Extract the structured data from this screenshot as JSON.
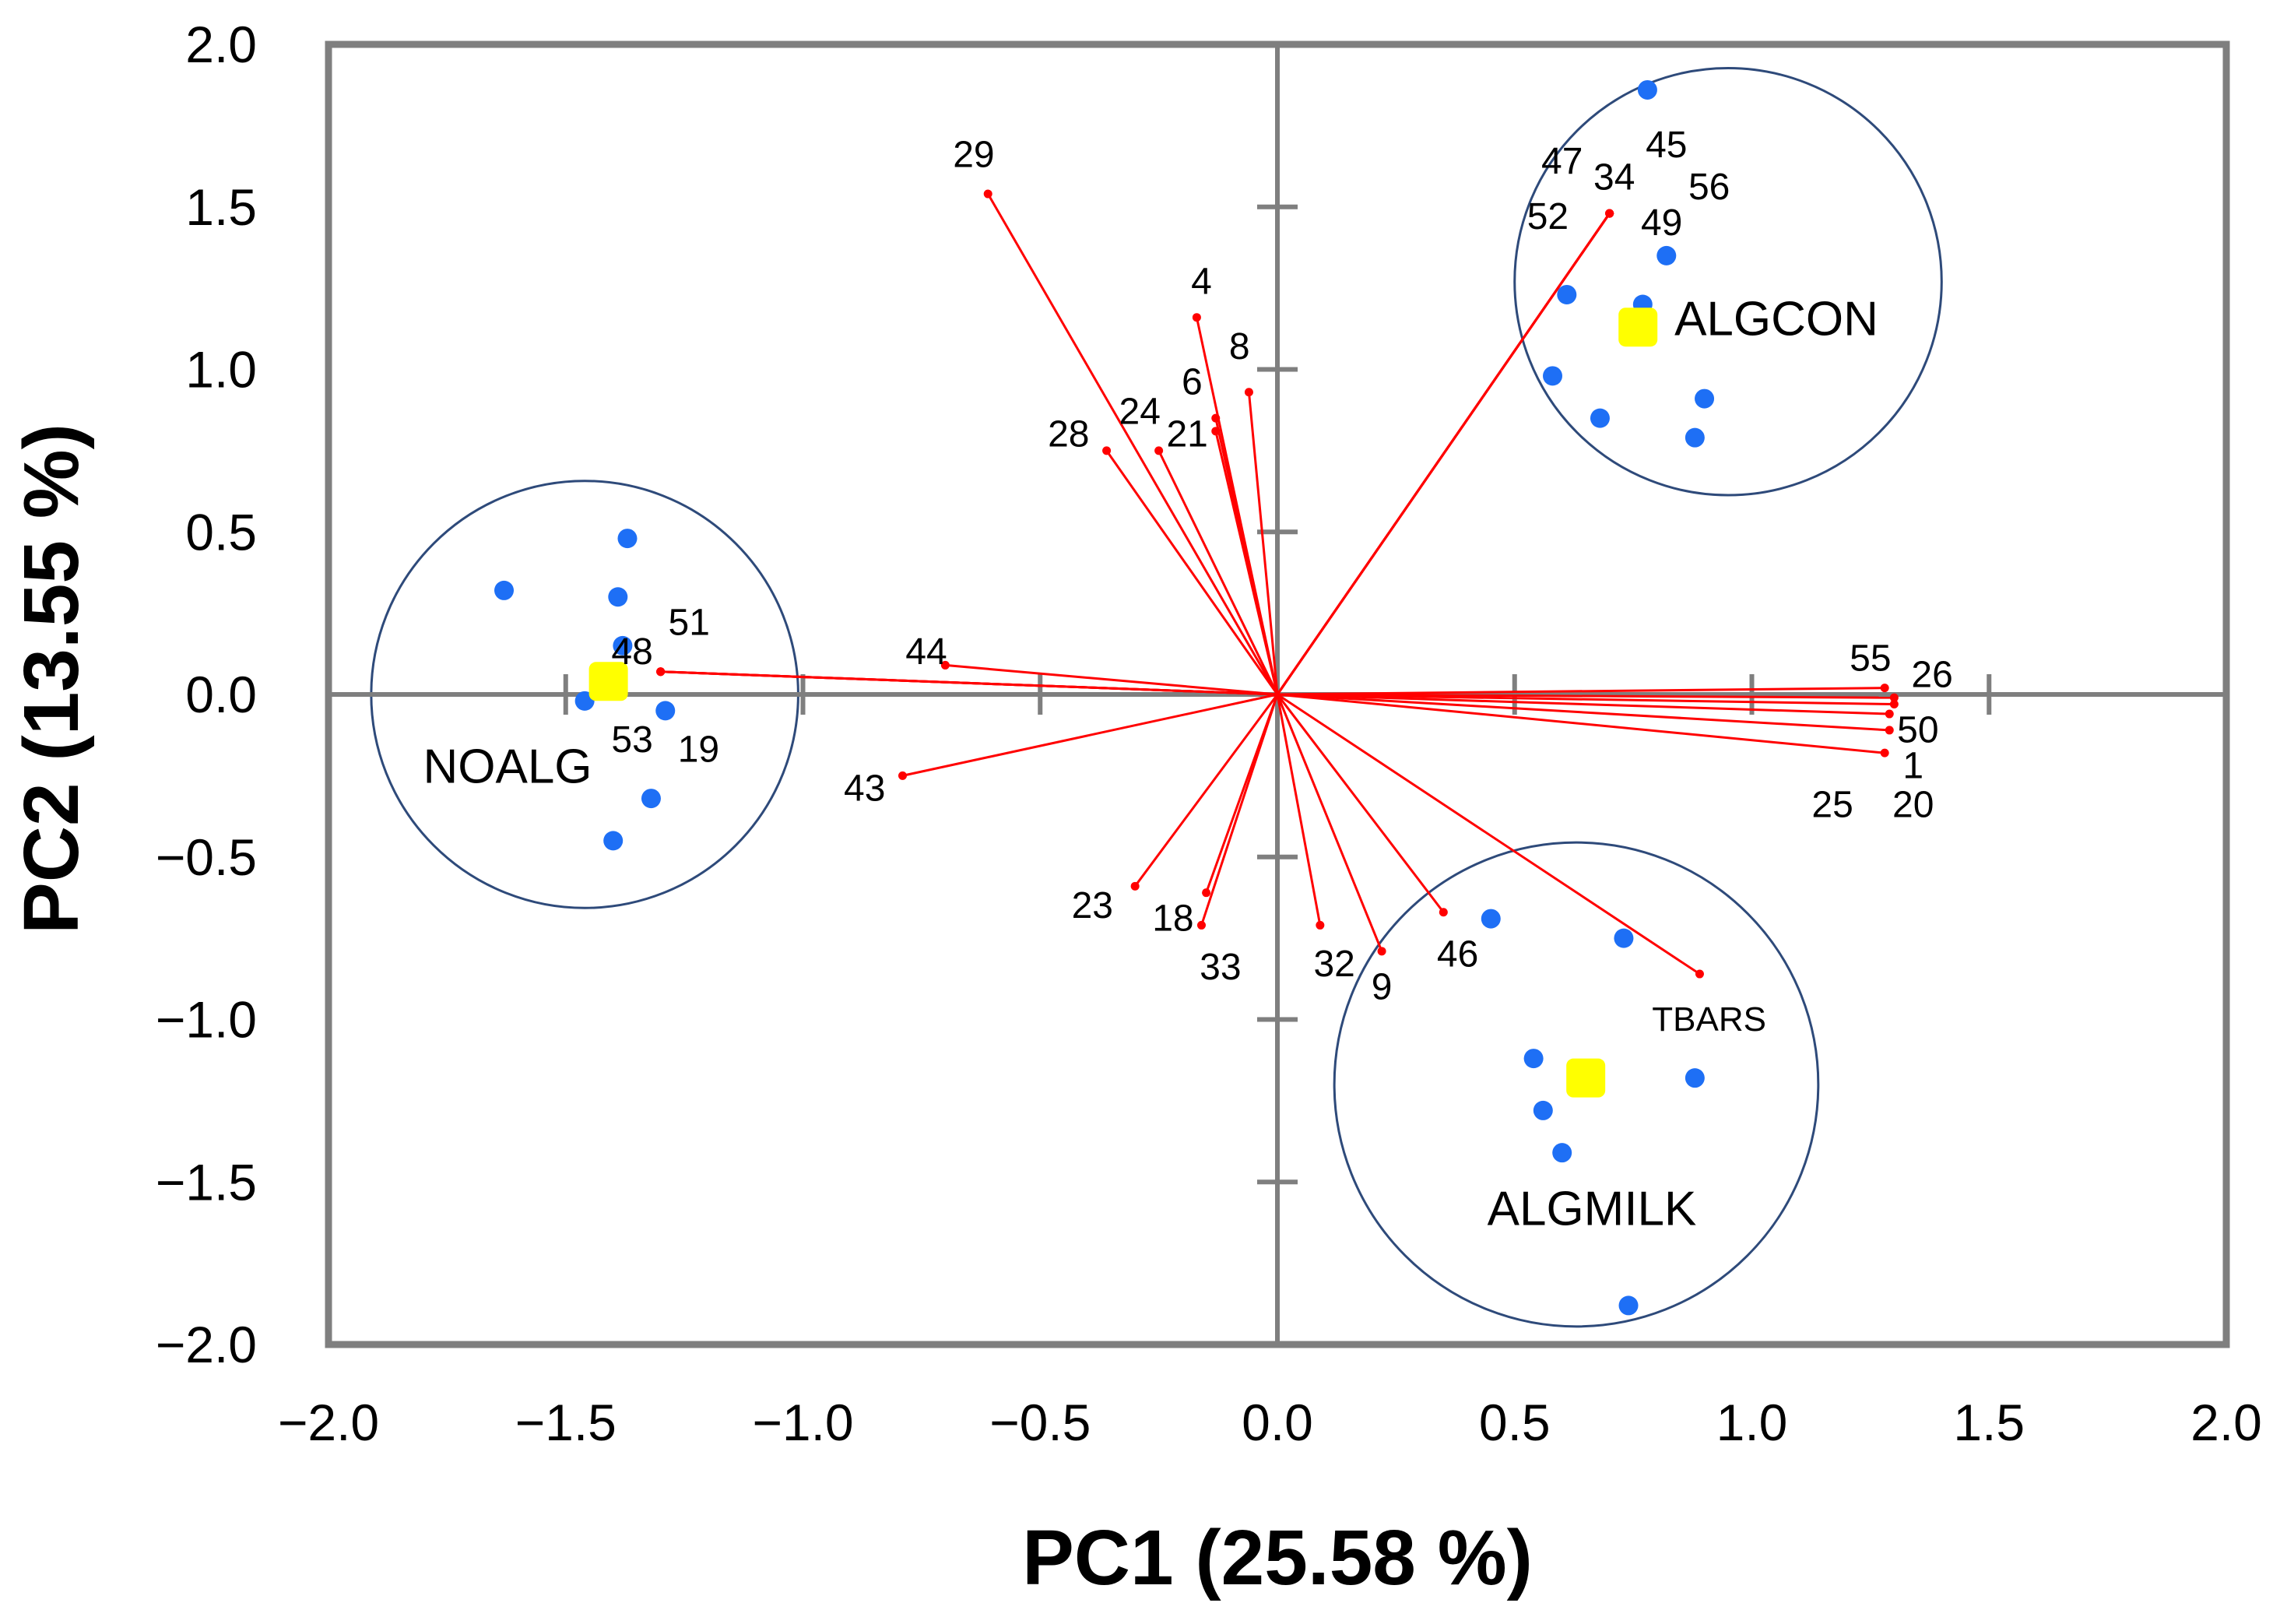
{
  "chart_data": {
    "type": "scatter",
    "subtype": "pca-biplot",
    "xlabel": "PC1 (25.58 %)",
    "ylabel": "PC2 (13.55 %)",
    "xlim": [
      -2.0,
      2.0
    ],
    "ylim": [
      -2.0,
      2.0
    ],
    "x_ticks": [
      -2.0,
      -1.5,
      -1.0,
      -0.5,
      0.0,
      0.5,
      1.0,
      1.5,
      2.0
    ],
    "y_ticks": [
      -2.0,
      -1.5,
      -1.0,
      -0.5,
      0.0,
      0.5,
      1.0,
      1.5,
      2.0
    ],
    "x_tick_labels": [
      "−2.0",
      "−1.5",
      "−1.0",
      "−0.5",
      "0.0",
      "0.5",
      "1.0",
      "1.5",
      "2.0"
    ],
    "y_tick_labels": [
      "−2.0",
      "−1.5",
      "−1.0",
      "−0.5",
      "0.0",
      "0.5",
      "1.0",
      "1.5",
      "2.0"
    ],
    "colors": {
      "loading": "#ff0000",
      "score": "#1e6ff5",
      "centroid": "#ffff00",
      "circle": "#2e4a7a",
      "frame": "#7f7f7f"
    },
    "groups": [
      {
        "name": "NOALG",
        "centroid": [
          -1.41,
          0.04
        ],
        "circle_center": [
          -1.46,
          0.0
        ],
        "circle_radius": 0.45,
        "scores": [
          [
            -1.63,
            0.32
          ],
          [
            -1.37,
            0.48
          ],
          [
            -1.39,
            0.3
          ],
          [
            -1.38,
            0.15
          ],
          [
            -1.46,
            -0.02
          ],
          [
            -1.29,
            -0.05
          ],
          [
            -1.32,
            -0.32
          ],
          [
            -1.4,
            -0.45
          ]
        ]
      },
      {
        "name": "ALGCON",
        "centroid": [
          0.76,
          1.13
        ],
        "circle_center": [
          0.95,
          1.27
        ],
        "circle_radius": 0.45,
        "scores": [
          [
            0.78,
            1.86
          ],
          [
            0.82,
            1.35
          ],
          [
            0.61,
            1.23
          ],
          [
            0.77,
            1.2
          ],
          [
            0.58,
            0.98
          ],
          [
            0.9,
            0.91
          ],
          [
            0.68,
            0.85
          ],
          [
            0.88,
            0.79
          ]
        ]
      },
      {
        "name": "ALGMILK",
        "centroid": [
          0.65,
          -1.18
        ],
        "circle_center": [
          0.63,
          -1.2
        ],
        "circle_radius": 0.51,
        "scores": [
          [
            0.45,
            -0.69
          ],
          [
            0.73,
            -0.75
          ],
          [
            0.54,
            -1.12
          ],
          [
            0.88,
            -1.18
          ],
          [
            0.56,
            -1.28
          ],
          [
            0.6,
            -1.41
          ],
          [
            0.74,
            -1.88
          ]
        ]
      }
    ],
    "loadings": [
      {
        "label": "29",
        "x": -0.61,
        "y": 1.54,
        "lx": -0.64,
        "ly": 1.66,
        "size": "normal"
      },
      {
        "label": "4",
        "x": -0.17,
        "y": 1.16,
        "lx": -0.16,
        "ly": 1.27,
        "size": "normal"
      },
      {
        "label": "8",
        "x": -0.06,
        "y": 0.93,
        "lx": -0.08,
        "ly": 1.07,
        "size": "normal"
      },
      {
        "label": "6",
        "x": -0.13,
        "y": 0.85,
        "lx": -0.18,
        "ly": 0.96,
        "size": "normal"
      },
      {
        "label": "24",
        "x": -0.25,
        "y": 0.75,
        "lx": -0.29,
        "ly": 0.87,
        "size": "normal"
      },
      {
        "label": "21",
        "x": -0.13,
        "y": 0.81,
        "lx": -0.19,
        "ly": 0.8,
        "size": "normal"
      },
      {
        "label": "28",
        "x": -0.36,
        "y": 0.75,
        "lx": -0.44,
        "ly": 0.8,
        "size": "normal"
      },
      {
        "label": "47",
        "x": 0.7,
        "y": 1.48,
        "lx": 0.6,
        "ly": 1.64,
        "size": "normal"
      },
      {
        "label": "34",
        "x": 0.7,
        "y": 1.48,
        "lx": 0.71,
        "ly": 1.59,
        "size": "normal"
      },
      {
        "label": "45",
        "x": 0.7,
        "y": 1.48,
        "lx": 0.82,
        "ly": 1.69,
        "size": "normal"
      },
      {
        "label": "56",
        "x": 0.7,
        "y": 1.48,
        "lx": 0.91,
        "ly": 1.56,
        "size": "normal"
      },
      {
        "label": "52",
        "x": 0.7,
        "y": 1.48,
        "lx": 0.57,
        "ly": 1.47,
        "size": "normal"
      },
      {
        "label": "49",
        "x": 0.7,
        "y": 1.48,
        "lx": 0.81,
        "ly": 1.45,
        "size": "normal"
      },
      {
        "label": "48",
        "x": -1.3,
        "y": 0.07,
        "lx": -1.36,
        "ly": 0.13,
        "size": "normal"
      },
      {
        "label": "51",
        "x": -1.3,
        "y": 0.07,
        "lx": -1.24,
        "ly": 0.22,
        "size": "normal"
      },
      {
        "label": "53",
        "x": -1.3,
        "y": 0.07,
        "lx": -1.36,
        "ly": -0.14,
        "size": "normal"
      },
      {
        "label": "19",
        "x": -1.3,
        "y": 0.07,
        "lx": -1.22,
        "ly": -0.17,
        "size": "normal"
      },
      {
        "label": "44",
        "x": -0.7,
        "y": 0.09,
        "lx": -0.74,
        "ly": 0.13,
        "size": "normal"
      },
      {
        "label": "43",
        "x": -0.79,
        "y": -0.25,
        "lx": -0.87,
        "ly": -0.29,
        "size": "normal"
      },
      {
        "label": "55",
        "x": 1.28,
        "y": 0.02,
        "lx": 1.25,
        "ly": 0.11,
        "size": "normal"
      },
      {
        "label": "26",
        "x": 1.3,
        "y": -0.01,
        "lx": 1.38,
        "ly": 0.06,
        "size": "normal"
      },
      {
        "label": "50",
        "x": 1.3,
        "y": -0.03,
        "lx": 1.35,
        "ly": -0.11,
        "size": "normal"
      },
      {
        "label": "1",
        "x": 1.29,
        "y": -0.11,
        "lx": 1.34,
        "ly": -0.22,
        "size": "normal"
      },
      {
        "label": "25",
        "x": 1.28,
        "y": -0.18,
        "lx": 1.17,
        "ly": -0.34,
        "size": "normal"
      },
      {
        "label": "20",
        "x": 1.29,
        "y": -0.06,
        "lx": 1.34,
        "ly": -0.34,
        "size": "normal"
      },
      {
        "label": "23",
        "x": -0.3,
        "y": -0.59,
        "lx": -0.39,
        "ly": -0.65,
        "size": "normal"
      },
      {
        "label": "18",
        "x": -0.15,
        "y": -0.61,
        "lx": -0.22,
        "ly": -0.69,
        "size": "normal"
      },
      {
        "label": "33",
        "x": -0.16,
        "y": -0.71,
        "lx": -0.12,
        "ly": -0.84,
        "size": "normal"
      },
      {
        "label": "32",
        "x": 0.09,
        "y": -0.71,
        "lx": 0.12,
        "ly": -0.83,
        "size": "normal"
      },
      {
        "label": "9",
        "x": 0.22,
        "y": -0.79,
        "lx": 0.22,
        "ly": -0.9,
        "size": "normal"
      },
      {
        "label": "46",
        "x": 0.35,
        "y": -0.67,
        "lx": 0.38,
        "ly": -0.8,
        "size": "normal"
      },
      {
        "label": "TBARS",
        "x": 0.89,
        "y": -0.86,
        "lx": 0.91,
        "ly": -1.0,
        "size": "small"
      }
    ]
  }
}
